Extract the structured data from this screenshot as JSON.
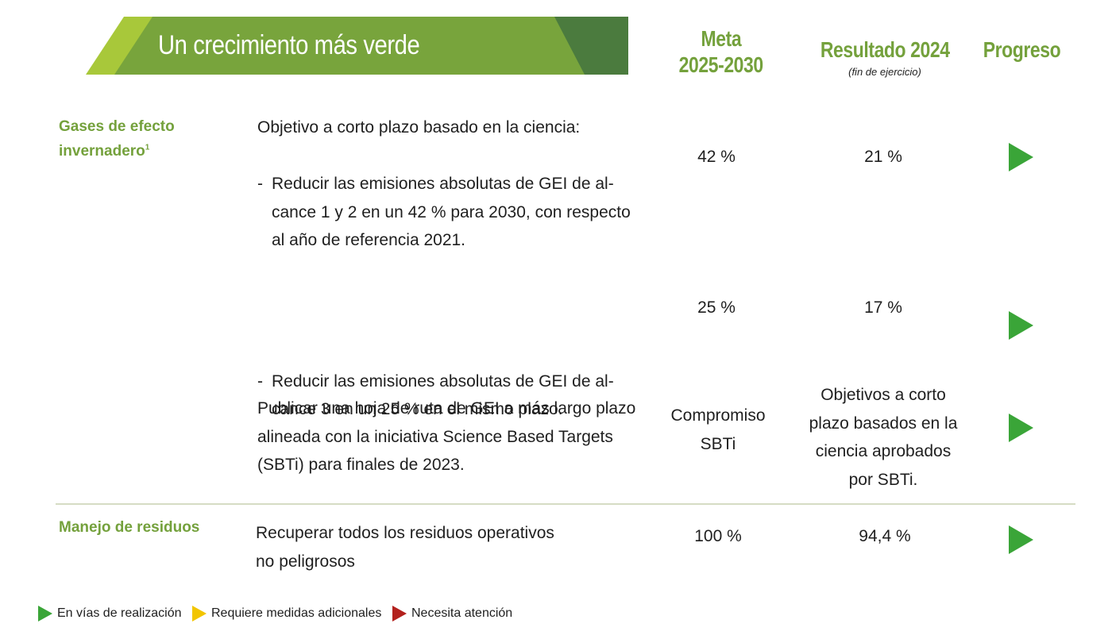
{
  "banner": {
    "title": "Un crecimiento más verde"
  },
  "headers": {
    "meta_line1": "Meta",
    "meta_line2": "2025-2030",
    "result": "Resultado 2024",
    "result_sub": "(fin de ejercicio)",
    "progress": "Progreso"
  },
  "ghg": {
    "category": "Gases de efecto",
    "category_line2": "invernadero",
    "category_footnote": "1",
    "intro": "Objetivo a corto plazo basado en la ciencia:",
    "bullet1_dash": "-",
    "bullet1_line1": "Reducir las emisiones absolutas de GEI de al-",
    "bullet1_line2": "cance 1 y 2 en un 42 % para 2030, con respecto",
    "bullet1_line3": "al año de referencia 2021.",
    "bullet1_target": "42 %",
    "bullet1_result": "21 %",
    "bullet2_dash": "-",
    "bullet2_line1": "Reducir las emisiones absolutas de GEI de al-",
    "bullet2_line2": "cance 3 en un 25 % en el mismo plazo.",
    "bullet2_target": "25 %",
    "bullet2_result": "17 %",
    "roadmap_line1": "Publicar una hoja de ruta de GEI a más largo plazo",
    "roadmap_line2": "alineada con la iniciativa Science Based Targets",
    "roadmap_line3": "(SBTi) para finales de 2023.",
    "roadmap_target_line1": "Compromiso",
    "roadmap_target_line2": "SBTi",
    "roadmap_result_line1": "Objetivos a corto",
    "roadmap_result_line2": "plazo basados en la",
    "roadmap_result_line3": "ciencia aprobados",
    "roadmap_result_line4": "por SBTi."
  },
  "waste": {
    "category": "Manejo de residuos",
    "line1": "Recuperar todos los residuos operativos",
    "line2": "no peligrosos",
    "target": "100 %",
    "result": "94,4 %"
  },
  "progress_status": [
    "on-track",
    "on-track",
    "on-track",
    "on-track"
  ],
  "legend": {
    "on_track": "En vías de realización",
    "needs_measures": "Requiere medidas adicionales",
    "needs_attention": "Necesita atención"
  },
  "colors": {
    "accent_green": "#74a13c",
    "status_green": "#3aa538",
    "status_yellow": "#f2c500",
    "status_red": "#b3211d",
    "banner_light": "#a8c83a",
    "banner_mid": "#78a43c",
    "banner_dark": "#4b7b3e"
  }
}
